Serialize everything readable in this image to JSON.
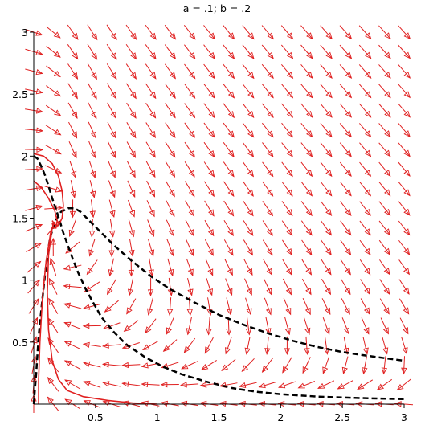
{
  "chart_data": {
    "type": "vector-field",
    "title": "a = .1;  b = .2",
    "xlabel": "",
    "ylabel": "",
    "xlim": [
      0,
      3
    ],
    "ylim": [
      0,
      3
    ],
    "x_ticks": [
      0.5,
      1,
      1.5,
      2,
      2.5,
      3
    ],
    "x_tick_labels": [
      "0.5",
      "1",
      "1.5",
      "2",
      "2.5",
      "3"
    ],
    "y_ticks": [
      0.5,
      1,
      1.5,
      2,
      2.5,
      3
    ],
    "y_tick_labels": [
      "0.5",
      "1",
      "1.5",
      "2",
      "2.5",
      "3"
    ],
    "parameters": {
      "a": 0.1,
      "b": 0.2
    },
    "field_color": "#e02020",
    "field_grid": 20,
    "series": [
      {
        "style": "black-dashed",
        "color": "#000000",
        "points": [
          [
            0.0,
            2.0
          ],
          [
            0.03,
            1.98
          ],
          [
            0.06,
            1.92
          ],
          [
            0.09,
            1.85
          ],
          [
            0.12,
            1.76
          ],
          [
            0.15,
            1.66
          ],
          [
            0.18,
            1.57
          ],
          [
            0.21,
            1.48
          ],
          [
            0.24,
            1.38
          ],
          [
            0.28,
            1.27
          ],
          [
            0.32,
            1.16
          ],
          [
            0.36,
            1.06
          ],
          [
            0.42,
            0.93
          ],
          [
            0.48,
            0.82
          ],
          [
            0.55,
            0.7
          ],
          [
            0.65,
            0.58
          ],
          [
            0.75,
            0.48
          ],
          [
            0.9,
            0.38
          ],
          [
            1.05,
            0.3
          ],
          [
            1.2,
            0.24
          ],
          [
            1.4,
            0.18
          ],
          [
            1.6,
            0.13
          ],
          [
            1.8,
            0.1
          ],
          [
            2.0,
            0.08
          ],
          [
            2.3,
            0.06
          ],
          [
            2.6,
            0.05
          ],
          [
            3.0,
            0.04
          ]
        ]
      },
      {
        "style": "black-dashed",
        "color": "#000000",
        "points": [
          [
            0.0,
            0.0
          ],
          [
            0.02,
            0.25
          ],
          [
            0.04,
            0.55
          ],
          [
            0.07,
            0.85
          ],
          [
            0.1,
            1.12
          ],
          [
            0.13,
            1.33
          ],
          [
            0.17,
            1.47
          ],
          [
            0.22,
            1.55
          ],
          [
            0.28,
            1.58
          ],
          [
            0.33,
            1.58
          ],
          [
            0.38,
            1.55
          ],
          [
            0.45,
            1.48
          ],
          [
            0.55,
            1.38
          ],
          [
            0.65,
            1.28
          ],
          [
            0.8,
            1.15
          ],
          [
            0.95,
            1.03
          ],
          [
            1.1,
            0.93
          ],
          [
            1.3,
            0.82
          ],
          [
            1.5,
            0.72
          ],
          [
            1.7,
            0.64
          ],
          [
            1.9,
            0.57
          ],
          [
            2.1,
            0.51
          ],
          [
            2.3,
            0.46
          ],
          [
            2.5,
            0.42
          ],
          [
            2.7,
            0.39
          ],
          [
            3.0,
            0.35
          ]
        ]
      },
      {
        "style": "red-solid",
        "color": "#e02020",
        "points": [
          [
            0.0,
            2.02
          ],
          [
            0.08,
            2.0
          ],
          [
            0.15,
            1.94
          ],
          [
            0.2,
            1.84
          ],
          [
            0.23,
            1.72
          ],
          [
            0.24,
            1.6
          ],
          [
            0.23,
            1.5
          ],
          [
            0.2,
            1.44
          ],
          [
            0.17,
            1.45
          ],
          [
            0.15,
            1.48
          ]
        ]
      },
      {
        "style": "red-solid",
        "color": "#e02020",
        "points": [
          [
            0.0,
            1.8
          ],
          [
            0.06,
            1.75
          ],
          [
            0.12,
            1.66
          ],
          [
            0.17,
            1.56
          ],
          [
            0.19,
            1.48
          ],
          [
            0.18,
            1.42
          ],
          [
            0.16,
            1.42
          ],
          [
            0.15,
            1.46
          ]
        ]
      },
      {
        "style": "red-solid",
        "color": "#e02020",
        "points": [
          [
            0.04,
            0.0
          ],
          [
            0.04,
            0.2
          ],
          [
            0.05,
            0.5
          ],
          [
            0.07,
            0.85
          ],
          [
            0.1,
            1.15
          ],
          [
            0.14,
            1.4
          ],
          [
            0.17,
            1.47
          ]
        ]
      },
      {
        "style": "red-solid",
        "color": "#e02020",
        "points": [
          [
            1.0,
            0.0
          ],
          [
            0.8,
            0.01
          ],
          [
            0.6,
            0.03
          ],
          [
            0.4,
            0.06
          ],
          [
            0.27,
            0.11
          ],
          [
            0.2,
            0.2
          ],
          [
            0.15,
            0.35
          ],
          [
            0.12,
            0.6
          ],
          [
            0.11,
            0.9
          ],
          [
            0.12,
            1.2
          ],
          [
            0.15,
            1.42
          ]
        ]
      }
    ]
  }
}
